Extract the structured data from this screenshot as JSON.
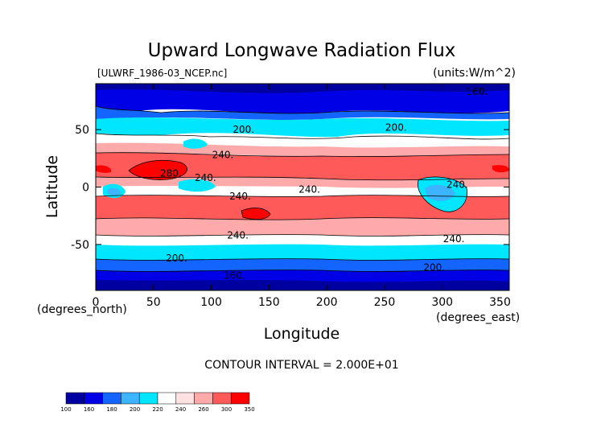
{
  "chart_data": {
    "type": "heatmap",
    "title": "Upward Longwave Radiation Flux",
    "source_file": "[ULWRF_1986-03_NCEP.nc]",
    "units_label": "(units:W/m^2)",
    "xlabel": "Longitude",
    "ylabel": "Latitude",
    "x_units": "(degrees_east)",
    "y_units": "(degrees_north)",
    "xlim": [
      0,
      358
    ],
    "ylim": [
      -90,
      90
    ],
    "x_ticks": [
      0,
      50,
      100,
      150,
      200,
      250,
      300,
      350
    ],
    "y_ticks": [
      -50,
      0,
      50
    ],
    "contour_interval_label": "CONTOUR INTERVAL = 2.000E+01",
    "colorbar_labels": [
      "100",
      "160",
      "180",
      "200",
      "220",
      "240",
      "260",
      "300",
      "350"
    ],
    "colorbar_colors": [
      "#0000a0",
      "#0000e6",
      "#1464ff",
      "#3cb4ff",
      "#00e6ff",
      "#ffffff",
      "#ffe1e1",
      "#ffaaaa",
      "#ff5a5a",
      "#ff0000"
    ],
    "contour_labels": [
      {
        "text": "160.",
        "lon": 330,
        "lat": 83
      },
      {
        "text": "200.",
        "lon": 128,
        "lat": 50
      },
      {
        "text": "200.",
        "lon": 260,
        "lat": 52
      },
      {
        "text": "240.",
        "lon": 110,
        "lat": 28
      },
      {
        "text": "280.",
        "lon": 65,
        "lat": 12
      },
      {
        "text": "240.",
        "lon": 95,
        "lat": 8
      },
      {
        "text": "240.",
        "lon": 125,
        "lat": -8
      },
      {
        "text": "240.",
        "lon": 185,
        "lat": -2
      },
      {
        "text": "240.",
        "lon": 313,
        "lat": 2
      },
      {
        "text": "240.",
        "lon": 123,
        "lat": -42
      },
      {
        "text": "240.",
        "lon": 310,
        "lat": -45
      },
      {
        "text": "200.",
        "lon": 70,
        "lat": -62
      },
      {
        "text": "200.",
        "lon": 293,
        "lat": -70
      },
      {
        "text": "160.",
        "lon": 120,
        "lat": -77
      }
    ]
  }
}
